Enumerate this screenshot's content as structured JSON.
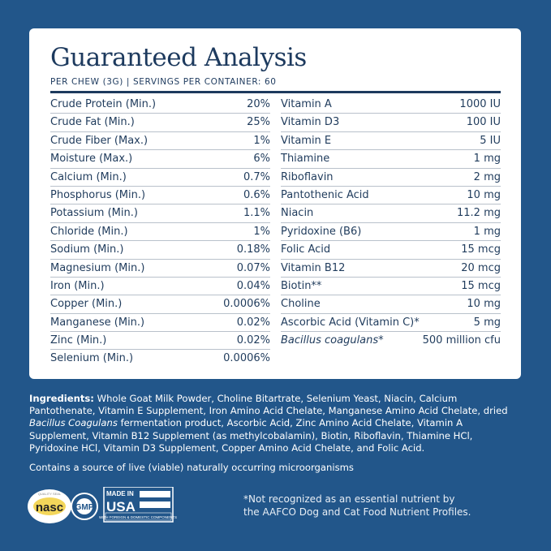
{
  "title": "Guaranteed Analysis",
  "subtitle": "PER CHEW (3G) | SERVINGS PER CONTAINER: 60",
  "left": [
    [
      "Crude Protein (Min.)",
      "20%"
    ],
    [
      "Crude Fat (Min.)",
      "25%"
    ],
    [
      "Crude Fiber (Max.)",
      "1%"
    ],
    [
      "Moisture (Max.)",
      "6%"
    ],
    [
      "Calcium (Min.)",
      "0.7%"
    ],
    [
      "Phosphorus (Min.)",
      "0.6%"
    ],
    [
      "Potassium (Min.)",
      "1.1%"
    ],
    [
      "Chloride (Min.)",
      "1%"
    ],
    [
      "Sodium (Min.)",
      "0.18%"
    ],
    [
      "Magnesium (Min.)",
      "0.07%"
    ],
    [
      "Iron (Min.)",
      "0.04%"
    ],
    [
      "Copper (Min.)",
      "0.0006%"
    ],
    [
      "Manganese (Min.)",
      "0.02%"
    ],
    [
      "Zinc (Min.)",
      "0.02%"
    ],
    [
      "Selenium (Min.)",
      "0.0006%"
    ]
  ],
  "right": [
    [
      "Vitamin A",
      "1000 IU"
    ],
    [
      "Vitamin D3",
      "100 IU"
    ],
    [
      "Vitamin E",
      "5 IU"
    ],
    [
      "Thiamine",
      "1 mg"
    ],
    [
      "Riboflavin",
      "2 mg"
    ],
    [
      "Pantothenic Acid",
      "10 mg"
    ],
    [
      "Niacin",
      "11.2 mg"
    ],
    [
      "Pyridoxine (B6)",
      "1 mg"
    ],
    [
      "Folic Acid",
      "15 mcg"
    ],
    [
      "Vitamin B12",
      "20 mcg"
    ],
    [
      "Biotin**",
      "15 mcg"
    ],
    [
      "Choline",
      "10 mg"
    ],
    [
      "Ascorbic Acid (Vitamin C)*",
      "5 mg"
    ],
    [
      "Bacillus coagulans*",
      "500 million cfu"
    ]
  ],
  "ingredients_label": "Ingredients:",
  "ingredients_1": " Whole Goat Milk Powder, Choline Bitartrate, Selenium Yeast, Niacin, Calcium Pantothenate, Vitamin E Supplement, Iron Amino Acid Chelate, Manganese Amino Acid Chelate, dried ",
  "ingredients_italic": "Bacillus Coagulans",
  "ingredients_2": " fermentation product, Ascorbic Acid, Zinc Amino Acid Chelate, Vitamin A Supplement, Vitamin B12 Supplement (as methylcobalamin), Biotin, Riboflavin, Thiamine HCl, Pyridoxine HCl, Vitamin D3 Supplement, Copper Amino Acid Chelate, and Folic Acid.",
  "note": "Contains a source of live (viable) naturally occurring microorganisms",
  "footnote_1": "*Not recognized as an essential nutrient by",
  "footnote_2": "the AAFCO Dog and Cat Food Nutrient Profiles.",
  "logos": {
    "nasc": "nasc",
    "nasc_seal": "QUALITY SEAL",
    "gmp": "GMP",
    "usa_1": "MADE IN",
    "usa_2": "USA",
    "usa_3": "WITH FOREIGN & DOMESTIC COMPONENTS"
  },
  "colors": {
    "background": "#22568a",
    "text_dark": "#1d3a5e"
  }
}
